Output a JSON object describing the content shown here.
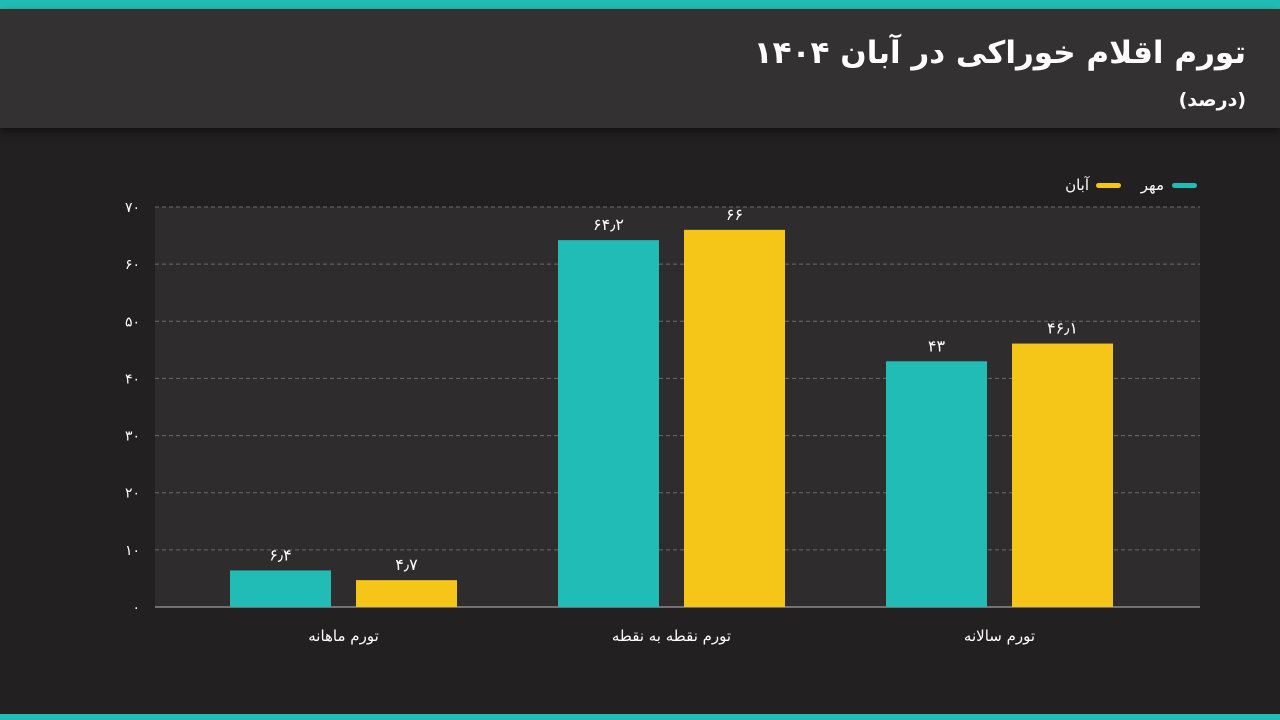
{
  "header": {
    "title": "تورم اقلام خوراکی در آبان ۱۴۰۴",
    "subtitle": "(درصد)"
  },
  "colors": {
    "mehr": "#22bcb6",
    "aban": "#f5c518",
    "grid": "#6d6a6b",
    "plot_bg": "#2f2c2d"
  },
  "chart_data": {
    "type": "bar",
    "title": "تورم اقلام خوراکی در آبان ۱۴۰۴",
    "subtitle": "(درصد)",
    "xlabel": "",
    "ylabel": "",
    "ylim": [
      0,
      70
    ],
    "yticks": [
      0,
      10,
      20,
      30,
      40,
      50,
      60,
      70
    ],
    "ytick_labels": [
      "۰",
      "۱۰",
      "۲۰",
      "۳۰",
      "۴۰",
      "۵۰",
      "۶۰",
      "۷۰"
    ],
    "grid": true,
    "legend_position": "top-right",
    "categories": [
      "تورم ماهانه",
      "تورم نقطه به نقطه",
      "تورم سالانه"
    ],
    "series": [
      {
        "name": "مهر",
        "color": "#22bcb6",
        "values": [
          6.4,
          64.2,
          43
        ],
        "labels": [
          "۶٫۴",
          "۶۴٫۲",
          "۴۳"
        ]
      },
      {
        "name": "آبان",
        "color": "#f5c518",
        "values": [
          4.7,
          66,
          46.1
        ],
        "labels": [
          "۴٫۷",
          "۶۶",
          "۴۶٫۱"
        ]
      }
    ]
  }
}
